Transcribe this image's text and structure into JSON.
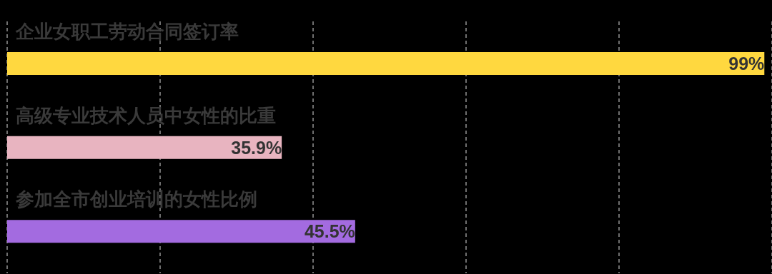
{
  "chart_data": {
    "type": "bar",
    "orientation": "horizontal",
    "categories": [
      "企业女职工劳动合同签订率",
      "高级专业技术人员中女性的比重",
      "参加全市创业培训的女性比例"
    ],
    "values": [
      99,
      35.9,
      45.5
    ],
    "colors": [
      "#ffd83f",
      "#e8b4c0",
      "#a36be0"
    ],
    "value_labels": [
      "99%",
      "35.9%",
      "45.5%"
    ],
    "xlim": [
      0,
      100
    ],
    "tick_labels": "y",
    "grid": "x"
  }
}
